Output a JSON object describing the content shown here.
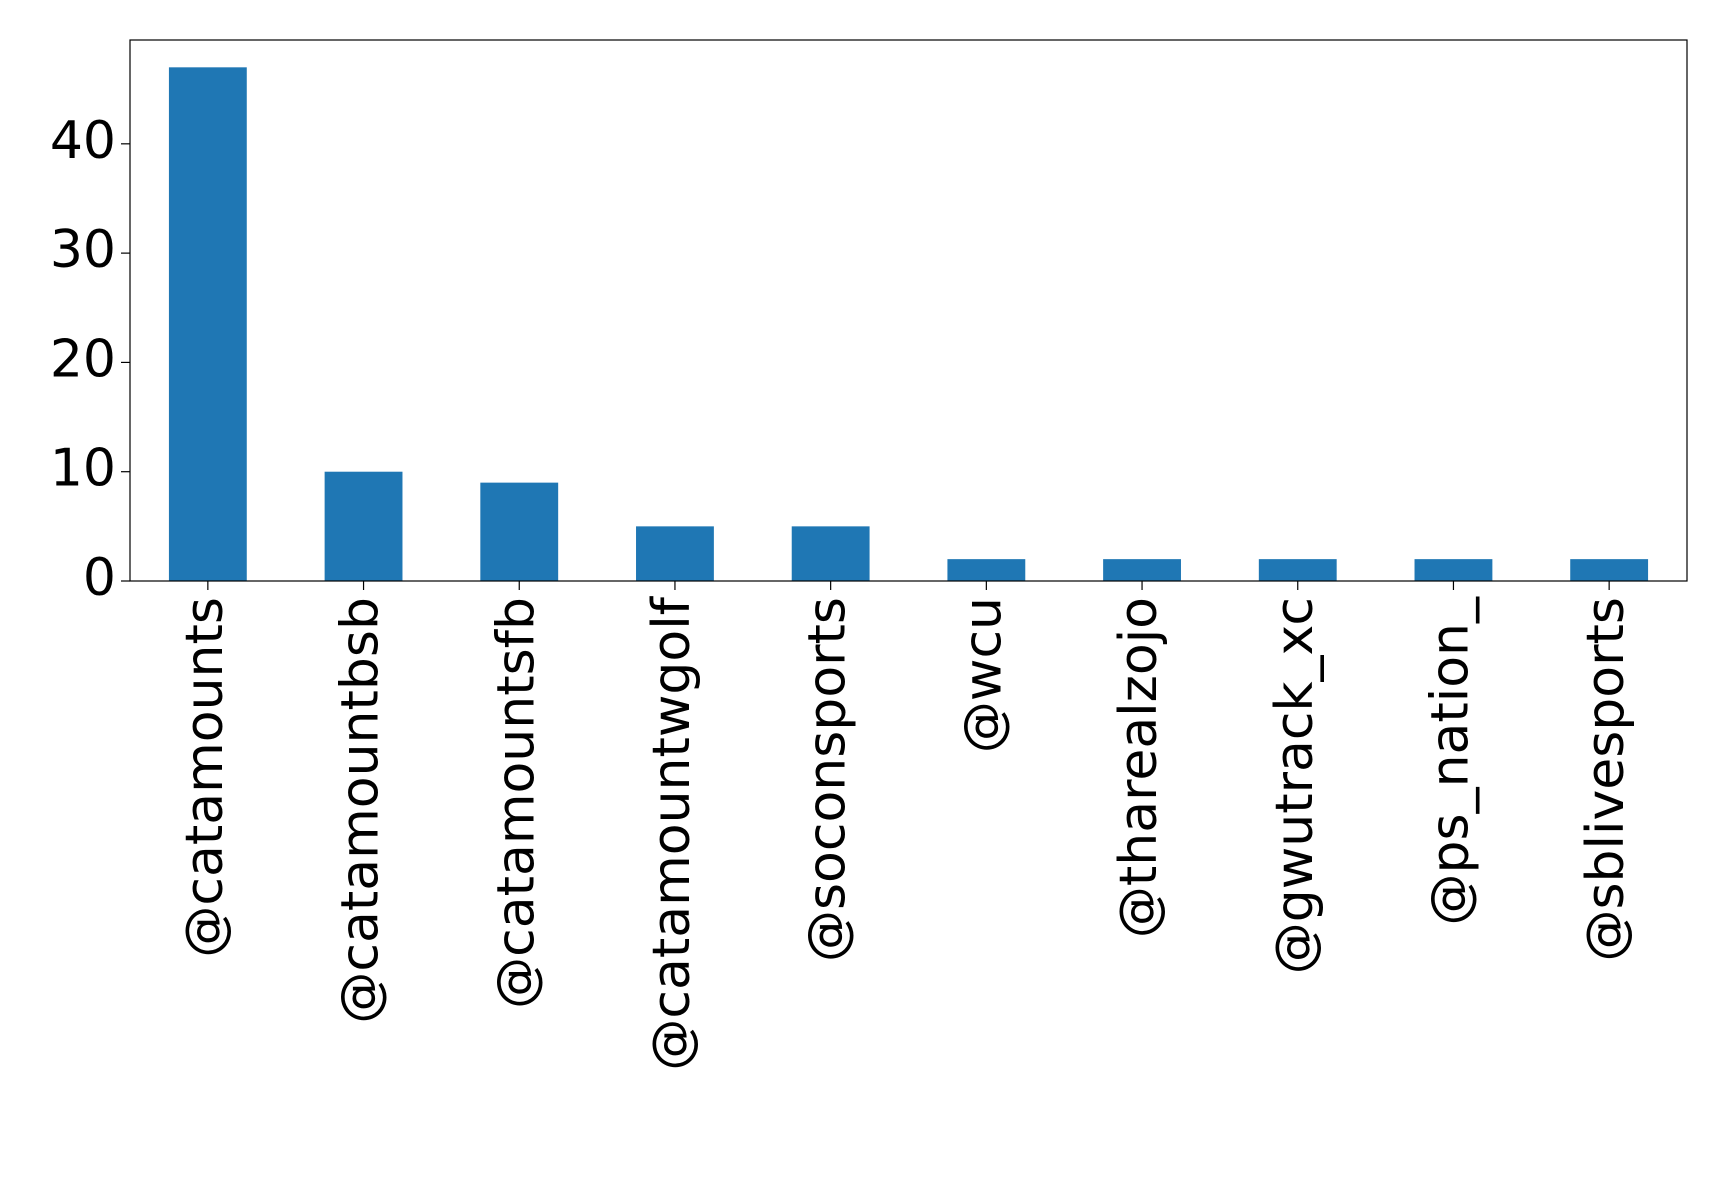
{
  "chart_data": {
    "type": "bar",
    "categories": [
      "@catamounts",
      "@catamountbsb",
      "@catamountsfb",
      "@catamountwgolf",
      "@soconsports",
      "@wcu",
      "@tharealzojo",
      "@gwutrack_xc",
      "@ps_nation_",
      "@sblivesports"
    ],
    "values": [
      47,
      10,
      9,
      5,
      5,
      2,
      2,
      2,
      2,
      2
    ],
    "color": "#1f77b4",
    "ylim": [
      0,
      49.5
    ],
    "yticks": [
      0,
      10,
      20,
      30,
      40
    ],
    "grid": false
  }
}
